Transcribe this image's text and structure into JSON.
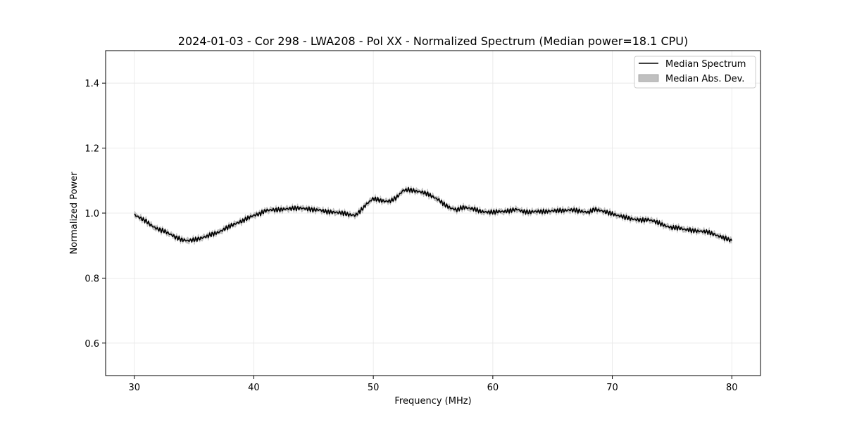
{
  "chart_data": {
    "type": "line",
    "title": "2024-01-03 - Cor 298 - LWA208 - Pol XX - Normalized Spectrum (Median power=18.1 CPU)",
    "xlabel": "Frequency (MHz)",
    "ylabel": "Normalized Power",
    "xlim": [
      27.6,
      82.4
    ],
    "ylim": [
      0.5,
      1.5
    ],
    "xticks": [
      30,
      40,
      50,
      60,
      70,
      80
    ],
    "yticks": [
      0.6,
      0.8,
      1.0,
      1.2,
      1.4
    ],
    "xtick_labels": [
      "30",
      "40",
      "50",
      "60",
      "70",
      "80"
    ],
    "ytick_labels": [
      "0.6",
      "0.8",
      "1.0",
      "1.2",
      "1.4"
    ],
    "grid": true,
    "legend_position": "top-right",
    "legend": [
      "Median Spectrum",
      "Median Abs. Dev."
    ],
    "colors": {
      "line": "#000000",
      "band": "#b0b0b0",
      "grid": "#e6e6e6"
    },
    "series": [
      {
        "name": "Median Spectrum",
        "x": [
          30.0,
          30.5,
          31.0,
          31.5,
          32.0,
          32.5,
          33.0,
          33.5,
          34.0,
          34.5,
          35.0,
          35.5,
          36.0,
          36.5,
          37.0,
          37.5,
          38.0,
          38.5,
          39.0,
          39.5,
          40.0,
          40.5,
          41.0,
          41.5,
          42.0,
          42.5,
          43.0,
          43.5,
          44.0,
          44.5,
          45.0,
          45.5,
          46.0,
          46.5,
          47.0,
          47.5,
          48.0,
          48.5,
          49.0,
          49.5,
          50.0,
          50.5,
          51.0,
          51.5,
          52.0,
          52.5,
          53.0,
          53.5,
          54.0,
          54.5,
          55.0,
          55.5,
          56.0,
          56.5,
          57.0,
          57.5,
          58.0,
          58.5,
          59.0,
          59.5,
          60.0,
          60.5,
          61.0,
          61.5,
          62.0,
          62.5,
          63.0,
          63.5,
          64.0,
          64.5,
          65.0,
          65.5,
          66.0,
          66.5,
          67.0,
          67.5,
          68.0,
          68.5,
          69.0,
          69.5,
          70.0,
          70.5,
          71.0,
          71.5,
          72.0,
          72.5,
          73.0,
          73.5,
          74.0,
          74.5,
          75.0,
          75.5,
          76.0,
          76.5,
          77.0,
          77.5,
          78.0,
          78.5,
          79.0,
          79.5,
          80.0
        ],
        "values": [
          0.995,
          0.985,
          0.975,
          0.96,
          0.95,
          0.945,
          0.935,
          0.925,
          0.918,
          0.915,
          0.918,
          0.922,
          0.928,
          0.935,
          0.94,
          0.95,
          0.96,
          0.968,
          0.975,
          0.985,
          0.993,
          0.998,
          1.008,
          1.01,
          1.01,
          1.012,
          1.014,
          1.015,
          1.015,
          1.013,
          1.01,
          1.01,
          1.005,
          1.003,
          1.002,
          1.0,
          0.995,
          0.993,
          1.01,
          1.03,
          1.045,
          1.04,
          1.036,
          1.038,
          1.05,
          1.07,
          1.072,
          1.068,
          1.065,
          1.06,
          1.05,
          1.04,
          1.025,
          1.015,
          1.01,
          1.018,
          1.015,
          1.012,
          1.005,
          1.003,
          1.003,
          1.005,
          1.005,
          1.008,
          1.012,
          1.005,
          1.003,
          1.005,
          1.005,
          1.005,
          1.007,
          1.008,
          1.008,
          1.01,
          1.008,
          1.005,
          1.002,
          1.012,
          1.008,
          1.003,
          0.998,
          0.992,
          0.988,
          0.983,
          0.98,
          0.978,
          0.98,
          0.975,
          0.968,
          0.96,
          0.955,
          0.955,
          0.95,
          0.948,
          0.945,
          0.944,
          0.942,
          0.935,
          0.928,
          0.922,
          0.915
        ]
      },
      {
        "name": "Median Abs. Dev.",
        "halfwidth": 0.008
      }
    ]
  }
}
